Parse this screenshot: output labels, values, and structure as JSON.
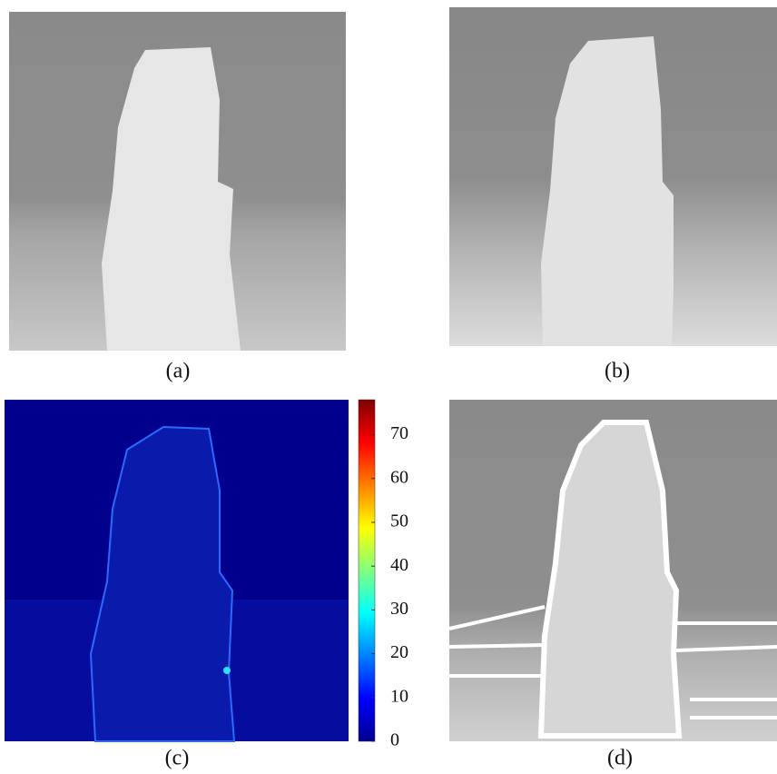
{
  "panels": [
    {
      "label": "(a)"
    },
    {
      "label": "(b)"
    },
    {
      "label": "(c)"
    },
    {
      "label": "(d)"
    }
  ],
  "colorbar": {
    "lim": [
      0,
      78
    ],
    "ticks": [
      0,
      10,
      20,
      30,
      40,
      50,
      60,
      70
    ]
  }
}
